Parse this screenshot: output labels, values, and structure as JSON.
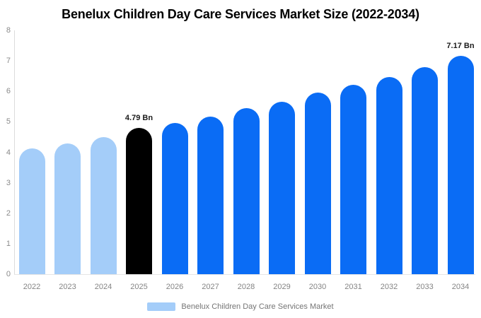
{
  "title": "Benelux Children Day Care Services Market Size (2022-2034)",
  "colors": {
    "past": "#a4cdf9",
    "current": "#000000",
    "forecast": "#0a6cf5",
    "axis_line": "#dcdcdc",
    "tick_text": "#8a8a8a",
    "annotation_text": "#1a1a1a",
    "legend_text": "#757575"
  },
  "legend": {
    "label": "Benelux Children Day Care Services Market",
    "swatch_color": "#a4cdf9"
  },
  "chart_data": {
    "type": "bar",
    "title": "Benelux Children Day Care Services Market Size (2022-2034)",
    "categories": [
      "2022",
      "2023",
      "2024",
      "2025",
      "2026",
      "2027",
      "2028",
      "2029",
      "2030",
      "2031",
      "2032",
      "2033",
      "2034"
    ],
    "values": [
      4.12,
      4.3,
      4.5,
      4.79,
      4.97,
      5.18,
      5.44,
      5.66,
      5.95,
      6.22,
      6.48,
      6.8,
      7.17
    ],
    "color_roles": [
      "past",
      "past",
      "past",
      "current",
      "forecast",
      "forecast",
      "forecast",
      "forecast",
      "forecast",
      "forecast",
      "forecast",
      "forecast",
      "forecast"
    ],
    "unit": "Bn",
    "annotations": [
      {
        "category": "2025",
        "text": "4.79 Bn"
      },
      {
        "category": "2034",
        "text": "7.17 Bn"
      }
    ],
    "xlabel": "",
    "ylabel": "",
    "ylim": [
      0,
      8
    ],
    "yticks": [
      0,
      1,
      2,
      3,
      4,
      5,
      6,
      7,
      8
    ],
    "grid": false,
    "legend_position": "bottom"
  }
}
